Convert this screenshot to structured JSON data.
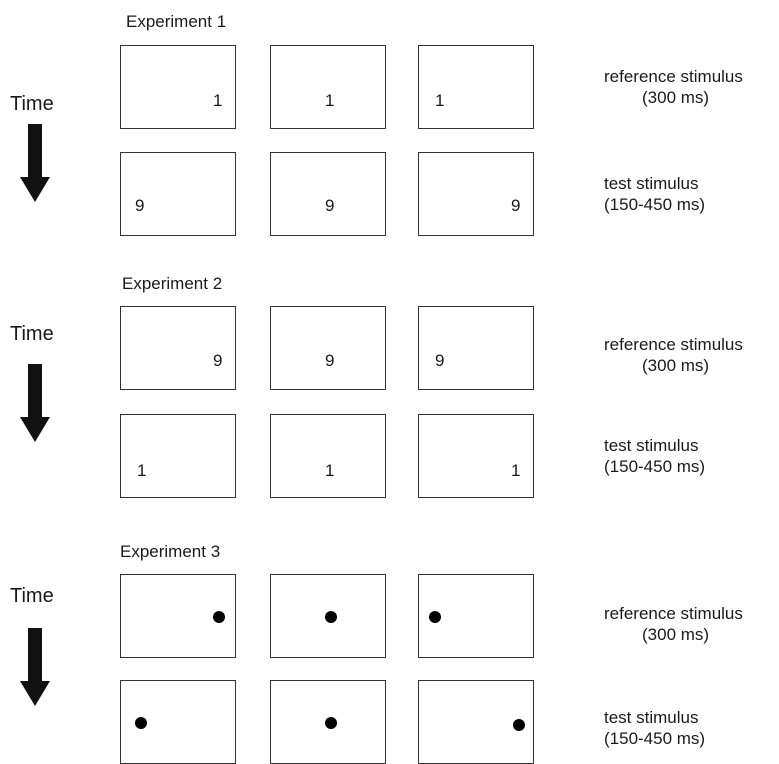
{
  "experiments": [
    {
      "title": "Experiment 1",
      "time_label": "Time",
      "reference": {
        "label_line1": "reference stimulus",
        "label_line2": "(300 ms)",
        "stimuli": [
          "1",
          "1",
          "1"
        ]
      },
      "test": {
        "label_line1": "test stimulus",
        "label_line2": "(150-450 ms)",
        "stimuli": [
          "9",
          "9",
          "9"
        ]
      }
    },
    {
      "title": "Experiment 2",
      "time_label": "Time",
      "reference": {
        "label_line1": "reference stimulus",
        "label_line2": "(300 ms)",
        "stimuli": [
          "9",
          "9",
          "9"
        ]
      },
      "test": {
        "label_line1": "test stimulus",
        "label_line2": "(150-450 ms)",
        "stimuli": [
          "1",
          "1",
          "1"
        ]
      }
    },
    {
      "title": "Experiment 3",
      "time_label": "Time",
      "reference": {
        "label_line1": "reference stimulus",
        "label_line2": "(300 ms)",
        "stimuli": "dot"
      },
      "test": {
        "label_line1": "test stimulus",
        "label_line2": "(150-450 ms)",
        "stimuli": "dot"
      }
    }
  ],
  "colors": {
    "arrow": "#111111",
    "box_border": "#333333",
    "dot": "#000000"
  }
}
